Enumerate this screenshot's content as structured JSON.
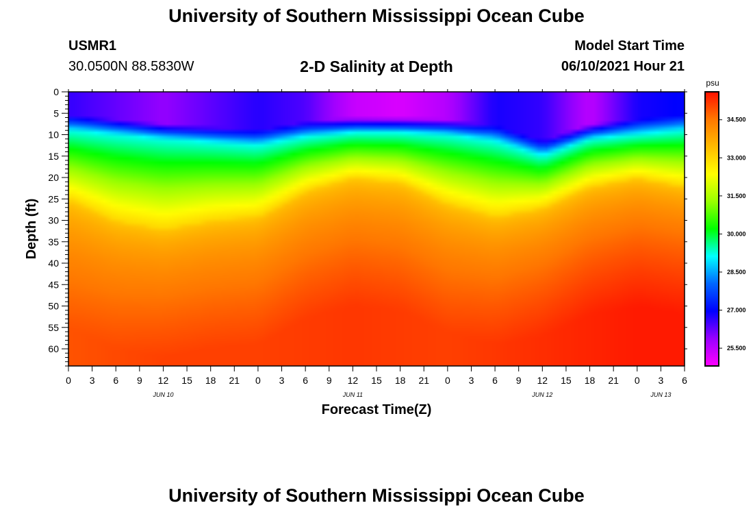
{
  "header": {
    "title": "University of Southern Mississippi Ocean Cube",
    "station_id": "USMR1",
    "station_coords": "30.0500N  88.5830W",
    "plot_title": "2-D Salinity at Depth",
    "model_start_label": "Model Start Time",
    "model_start_value": "06/10/2021 Hour 21"
  },
  "footer": {
    "title": "University of Southern Mississippi Ocean Cube"
  },
  "chart_data": {
    "type": "heatmap",
    "title": "2-D Salinity at Depth",
    "xlabel": "Forecast Time(Z)",
    "ylabel": "Depth (ft)",
    "x_range_hours": [
      0,
      78
    ],
    "x_tick_step_hours": 3,
    "x_tick_labels": [
      "0",
      "3",
      "6",
      "9",
      "12",
      "15",
      "18",
      "21",
      "0",
      "3",
      "6",
      "9",
      "12",
      "15",
      "18",
      "21",
      "0",
      "3",
      "6",
      "9",
      "12",
      "15",
      "18",
      "21",
      "0",
      "3",
      "6"
    ],
    "date_labels": [
      {
        "hour": 12,
        "text": "JUN 10"
      },
      {
        "hour": 36,
        "text": "JUN 11"
      },
      {
        "hour": 60,
        "text": "JUN 12"
      },
      {
        "hour": 75,
        "text": "JUN 13"
      }
    ],
    "ylim": [
      0,
      64
    ],
    "y_tick_labels": [
      0,
      5,
      10,
      15,
      20,
      25,
      30,
      35,
      40,
      45,
      50,
      55,
      60
    ],
    "colorbar": {
      "unit": "psu",
      "range": [
        24.8,
        35.6
      ],
      "ticks": [
        "25.500",
        "27.000",
        "28.500",
        "30.000",
        "31.500",
        "33.000",
        "34.500"
      ],
      "colors": [
        "#ff00ff",
        "#9900ff",
        "#0000ff",
        "#0066ff",
        "#00ffff",
        "#00ff00",
        "#99ff00",
        "#ffff00",
        "#ffbb00",
        "#ff7700",
        "#ff1100"
      ]
    },
    "series": [
      {
        "name": "surface_salinity_psu",
        "hours": [
          0,
          12,
          24,
          30,
          36,
          42,
          48,
          54,
          60,
          66,
          72,
          78
        ],
        "values": [
          26.6,
          25.9,
          26.7,
          26.4,
          25.4,
          25.2,
          25.6,
          26.8,
          26.6,
          25.5,
          26.8,
          27.0
        ]
      },
      {
        "name": "halocline_depth_ft",
        "hours": [
          0,
          12,
          24,
          30,
          36,
          42,
          48,
          54,
          60,
          66,
          72,
          78
        ],
        "values": [
          11.5,
          13.5,
          15.0,
          13.0,
          12.0,
          12.0,
          12.5,
          14.0,
          17.5,
          13.5,
          12.5,
          11.5
        ]
      },
      {
        "name": "yellow_isohaline_depth_ft",
        "hours": [
          0,
          6,
          12,
          18,
          24,
          30,
          36,
          42,
          48,
          54,
          60,
          66,
          72,
          78
        ],
        "values": [
          25,
          30,
          32,
          30,
          29,
          23,
          20,
          21,
          26,
          29,
          27,
          22,
          20,
          22
        ]
      },
      {
        "name": "bottom_salinity_psu",
        "hours": [
          0,
          12,
          24,
          36,
          48,
          60,
          66,
          72,
          78
        ],
        "values": [
          34.9,
          35.1,
          35.1,
          35.2,
          35.1,
          35.3,
          35.4,
          35.5,
          35.5
        ]
      }
    ]
  }
}
